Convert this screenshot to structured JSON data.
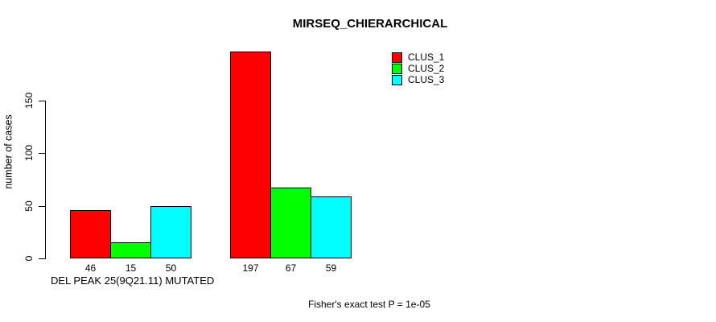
{
  "chart_data": {
    "type": "bar",
    "title": "MIRSEQ_CHIERARCHICAL",
    "ylabel": "number of cases",
    "xlabel": "DEL PEAK 25(9Q21.11) MUTATED",
    "annotation": "Fisher's exact test P = 1e-05",
    "ylim": [
      0,
      200
    ],
    "yticks": [
      0,
      50,
      100,
      150
    ],
    "grid": false,
    "bar_value_labels_shown": true,
    "legend": {
      "position": "top-right",
      "entries": [
        {
          "label": "CLUS_1",
          "color": "#ff0000"
        },
        {
          "label": "CLUS_2",
          "color": "#00ff00"
        },
        {
          "label": "CLUS_3",
          "color": "#00ffff"
        }
      ]
    },
    "categories": [
      "DEL PEAK 25(9Q21.11) MUTATED",
      ""
    ],
    "series": [
      {
        "name": "CLUS_1",
        "color": "#ff0000",
        "values": [
          46,
          197
        ]
      },
      {
        "name": "CLUS_2",
        "color": "#00ff00",
        "values": [
          15,
          67
        ]
      },
      {
        "name": "CLUS_3",
        "color": "#00ffff",
        "values": [
          50,
          59
        ]
      }
    ]
  }
}
